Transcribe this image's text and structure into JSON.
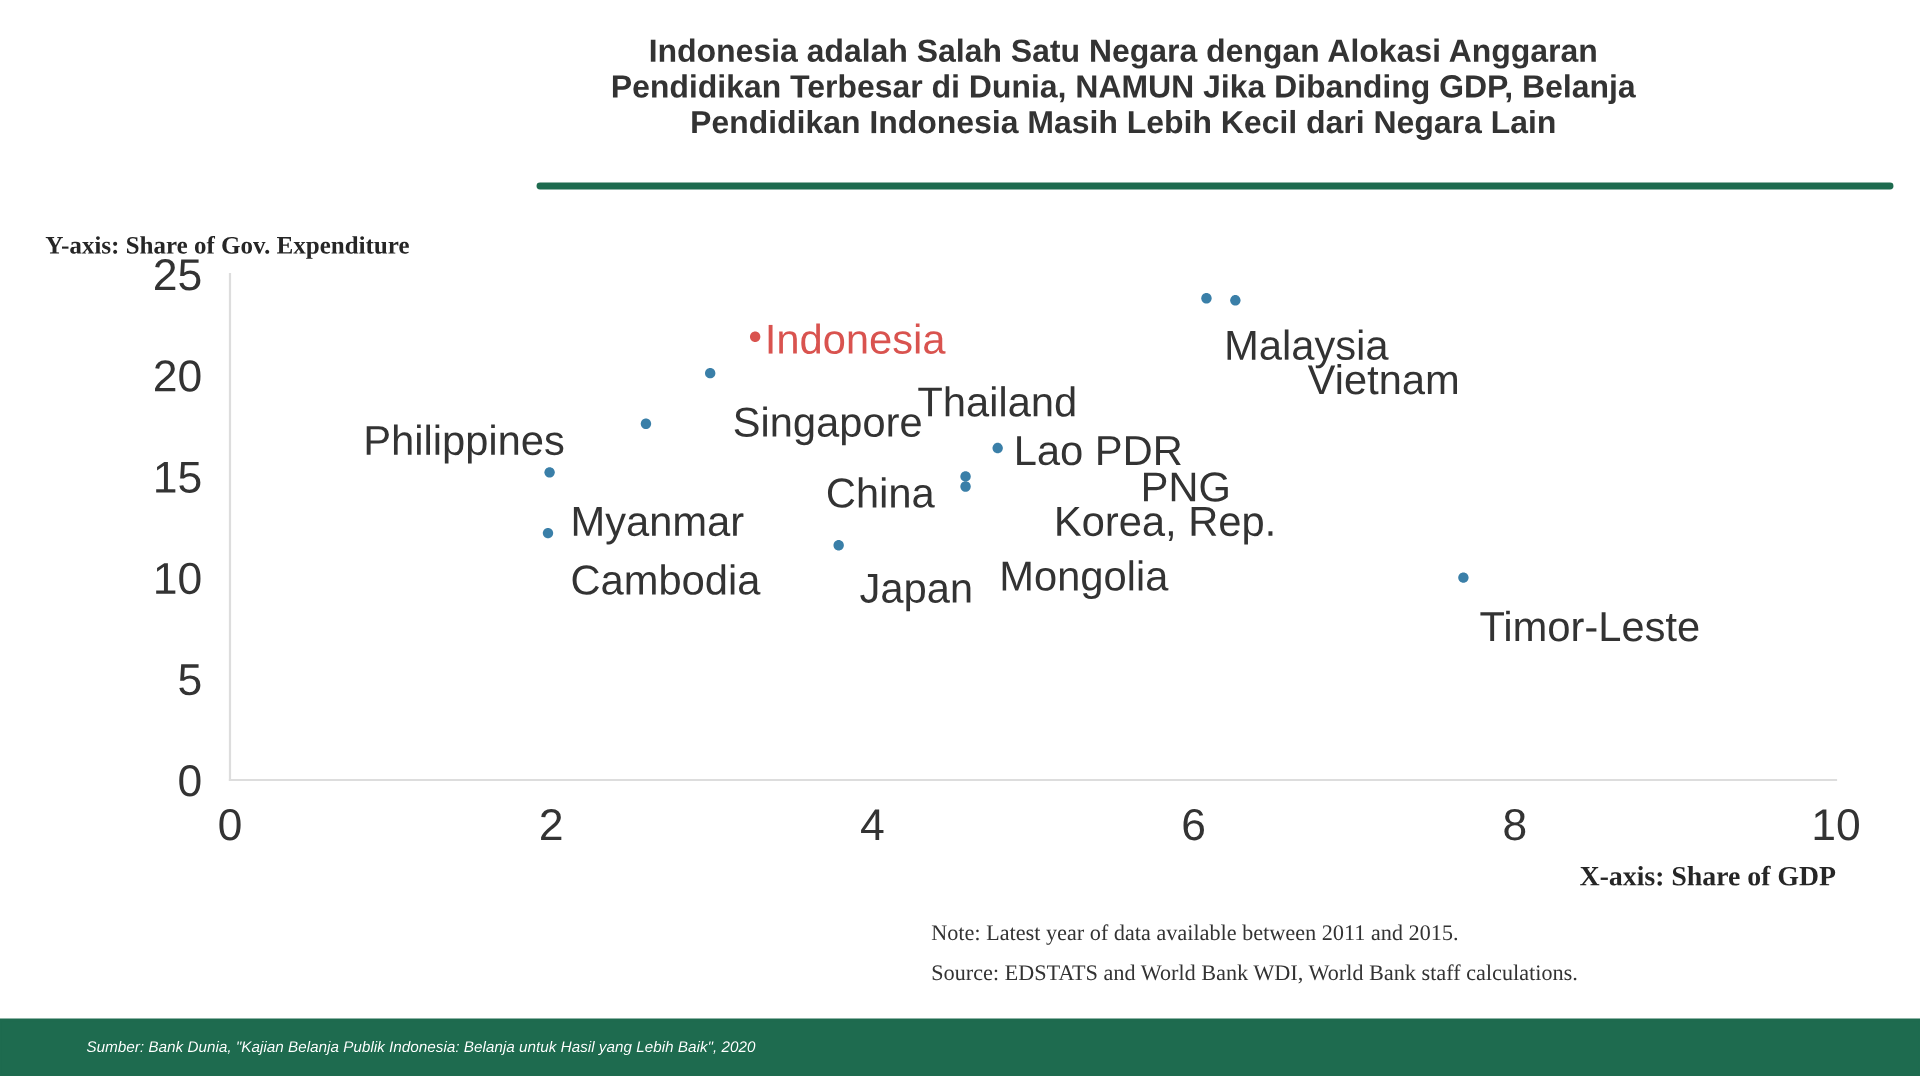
{
  "chart_data": {
    "type": "scatter",
    "title": "Indonesia adalah Salah Satu Negara dengan Alokasi Anggaran\nPendidikan Terbesar di Dunia, NAMUN Jika Dibanding GDP, Belanja\nPendidikan Indonesia Masih Lebih Kecil dari Negara Lain",
    "xlabel": "X-axis: Share of GDP",
    "ylabel": "Y-axis: Share of Gov. Expenditure",
    "xlim": [
      0,
      10
    ],
    "ylim": [
      0,
      25
    ],
    "xticks": [
      0,
      2,
      4,
      6,
      8,
      10
    ],
    "yticks": [
      0,
      5,
      10,
      15,
      20,
      25
    ],
    "grid": false,
    "legend": false,
    "marker": "circle",
    "series": [
      {
        "name": "Indonesia",
        "color": "#d9534f",
        "x": [
          3.27
        ],
        "values": [
          21.9
        ]
      },
      {
        "color": "#3a7fa8",
        "x": [
          2.99,
          2.59,
          1.99,
          1.98,
          3.79,
          4.58,
          4.58,
          4.78,
          6.08,
          6.26,
          7.68
        ],
        "values": [
          20.1,
          17.6,
          15.2,
          12.2,
          11.6,
          15.0,
          14.5,
          16.4,
          23.8,
          23.7,
          10.0
        ]
      }
    ],
    "annotations": [
      "Philippines",
      "Singapore",
      "Thailand",
      "Lao PDR",
      "PNG",
      "China",
      "Korea, Rep.",
      "Myanmar",
      "Cambodia",
      "Japan",
      "Mongolia",
      "Malaysia",
      "Vietnam",
      "Timor-Leste",
      "Note: Latest year of data available between 2011 and 2015.",
      "Source: EDSTATS and World Bank WDI, World Bank staff calculations.",
      "Sumber: Bank Dunia, \"Kajian Belanja Publik Indonesia: Belanja untuk Hasil yang Lebih Baik\", 2020"
    ]
  }
}
